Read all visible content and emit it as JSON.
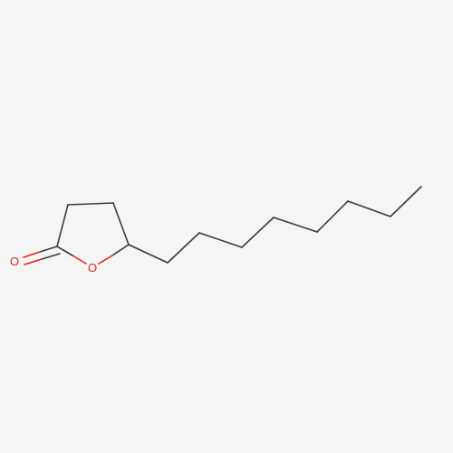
{
  "molecule": {
    "atoms": {
      "carbonyl_oxygen": "O",
      "ring_oxygen": "O"
    }
  },
  "colors": {
    "background": "#f5f5f5",
    "bond": "#3b3b3b",
    "oxygen": "#e8211b"
  }
}
